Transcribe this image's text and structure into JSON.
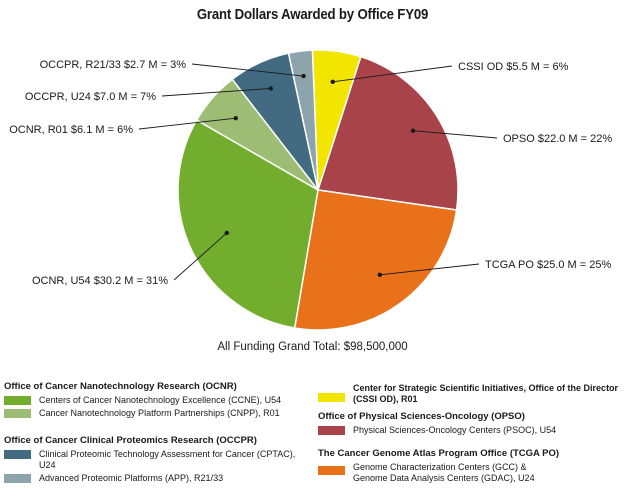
{
  "chart_data": {
    "type": "pie",
    "title": "Grant Dollars Awarded by Office FY09",
    "subtitle": "All Funding Grand Total: $98,500,000",
    "slices": [
      {
        "label": "CSSI OD $5.5 M = 6%",
        "value": 5.5,
        "color": "#f2e500"
      },
      {
        "label": "OPSO $22.0 M = 22%",
        "value": 22.0,
        "color": "#a8434a"
      },
      {
        "label": "TCGA PO $25.0 M = 25%",
        "value": 25.0,
        "color": "#e8711a"
      },
      {
        "label": "OCNR, U54 $30.2 M = 31%",
        "value": 30.2,
        "color": "#73ad2d"
      },
      {
        "label": "OCNR, R01 $6.1 M = 6%",
        "value": 6.1,
        "color": "#9dbd74"
      },
      {
        "label": "OCCPR, U24 $7.0 M = 7%",
        "value": 7.0,
        "color": "#426a80"
      },
      {
        "label": "OCCPR, R21/33 $2.7 M = 3%",
        "value": 2.7,
        "color": "#8ea4ad"
      }
    ]
  },
  "legend": {
    "left": {
      "ocnr": {
        "heading": "Office of Cancer Nanotechnology Research (OCNR)",
        "items": [
          {
            "text": "Centers of Cancer Nanotechnology Excellence (CCNE), U54",
            "color": "#73ad2d"
          },
          {
            "text": "Cancer Nanotechnology Platform Partnerships (CNPP), R01",
            "color": "#9dbd74"
          }
        ]
      },
      "occpr": {
        "heading": "Office of Cancer Clinical Proteomics Research (OCCPR)",
        "items": [
          {
            "text": "Clinical Proteomic Technology Assessment for Cancer (CPTAC), U24",
            "color": "#426a80"
          },
          {
            "text": "Advanced Proteomic Platforms (APP), R21/33",
            "color": "#8ea4ad"
          }
        ]
      }
    },
    "right": {
      "cssi": {
        "text": "Center for Strategic Scientific Initiatives, Office of the Director\n(CSSI OD), R01",
        "color": "#f2e500"
      },
      "opso": {
        "heading": "Office of Physical Sciences-Oncology (OPSO)",
        "items": [
          {
            "text": "Physical Sciences-Oncology Centers (PSOC), U54",
            "color": "#a8434a"
          }
        ]
      },
      "tcga": {
        "heading": "The Cancer Genome Atlas Program Office (TCGA PO)",
        "items": [
          {
            "text": "Genome Characterization Centers (GCC) &\nGenome Data Analysis Centers (GDAC), U24",
            "color": "#e8711a"
          }
        ]
      }
    }
  }
}
